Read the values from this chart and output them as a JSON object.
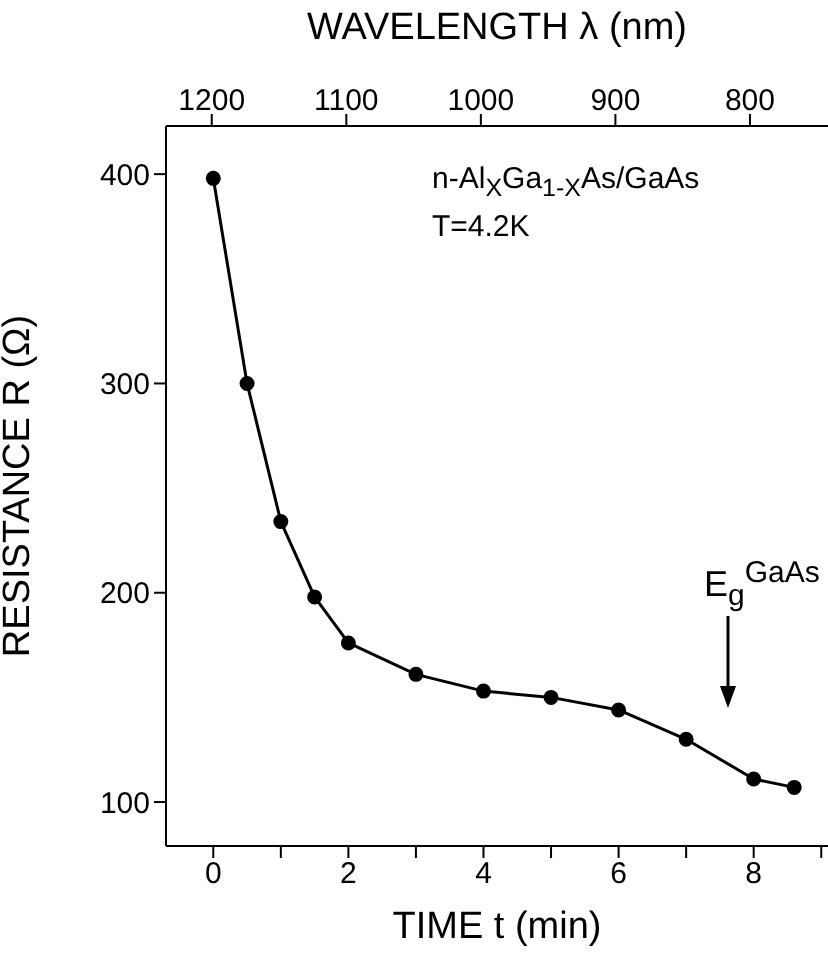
{
  "chart_data": {
    "type": "line",
    "xlabel": "TIME t (min)",
    "ylabel": "RESISTANCE R (Ω)",
    "x2label": "WAVELENGTH λ (nm)",
    "x": [
      0,
      0.5,
      1,
      1.5,
      2,
      3,
      4,
      5,
      6,
      7,
      8,
      8.6
    ],
    "series": [
      {
        "color": "#000000",
        "values": [
          398,
          300,
          234,
          198,
          176,
          161,
          153,
          150,
          144,
          130,
          111,
          107
        ]
      }
    ],
    "xlim": [
      -0.7,
      9.1
    ],
    "xticks": [
      0,
      {
        "value": 1,
        "label": null
      },
      2,
      {
        "value": 3,
        "label": null
      },
      4,
      {
        "value": 5,
        "label": null
      },
      6,
      {
        "value": 7,
        "label": null
      },
      8,
      {
        "value": 9,
        "label": null
      }
    ],
    "ylim": [
      79,
      423
    ],
    "yticks": [
      100,
      200,
      300,
      400
    ],
    "x2lim": [
      1234,
      742
    ],
    "x2ticks": [
      1200,
      1100,
      1000,
      900,
      800
    ],
    "marker": "circle",
    "line_style": "solid",
    "annotations": [
      "n-Al$_{X}$Ga$_{1-X}$As/GaAs",
      "T=4.2K",
      "E$_{g}$$^{GaAs}$"
    ]
  }
}
